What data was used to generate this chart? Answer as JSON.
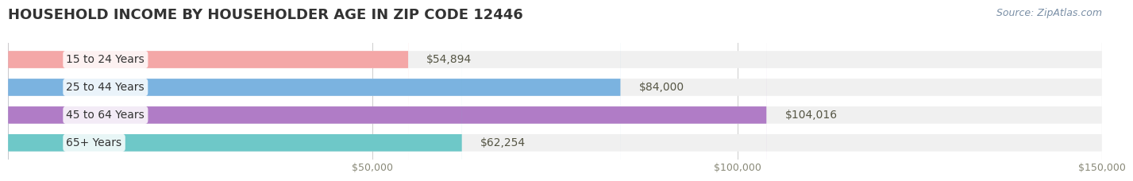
{
  "title": "HOUSEHOLD INCOME BY HOUSEHOLDER AGE IN ZIP CODE 12446",
  "source": "Source: ZipAtlas.com",
  "categories": [
    "15 to 24 Years",
    "25 to 44 Years",
    "45 to 64 Years",
    "65+ Years"
  ],
  "values": [
    54894,
    84000,
    104016,
    62254
  ],
  "bar_colors": [
    "#f4a7a7",
    "#7bb3e0",
    "#b07cc6",
    "#6ec8c8"
  ],
  "label_colors": [
    "#f4a7a7",
    "#7bb3e0",
    "#b07cc6",
    "#6ec8c8"
  ],
  "background_color": "#ffffff",
  "bar_bg_color": "#f0f0f0",
  "xlim": [
    0,
    150000
  ],
  "xticks": [
    0,
    50000,
    100000,
    150000
  ],
  "xtick_labels": [
    "",
    "$50,000",
    "$100,000",
    "$150,000"
  ],
  "title_fontsize": 13,
  "source_fontsize": 9,
  "bar_label_fontsize": 10,
  "category_fontsize": 10,
  "tick_fontsize": 9,
  "bar_height": 0.62,
  "value_labels": [
    "$54,894",
    "$84,000",
    "$104,016",
    "$62,254"
  ]
}
